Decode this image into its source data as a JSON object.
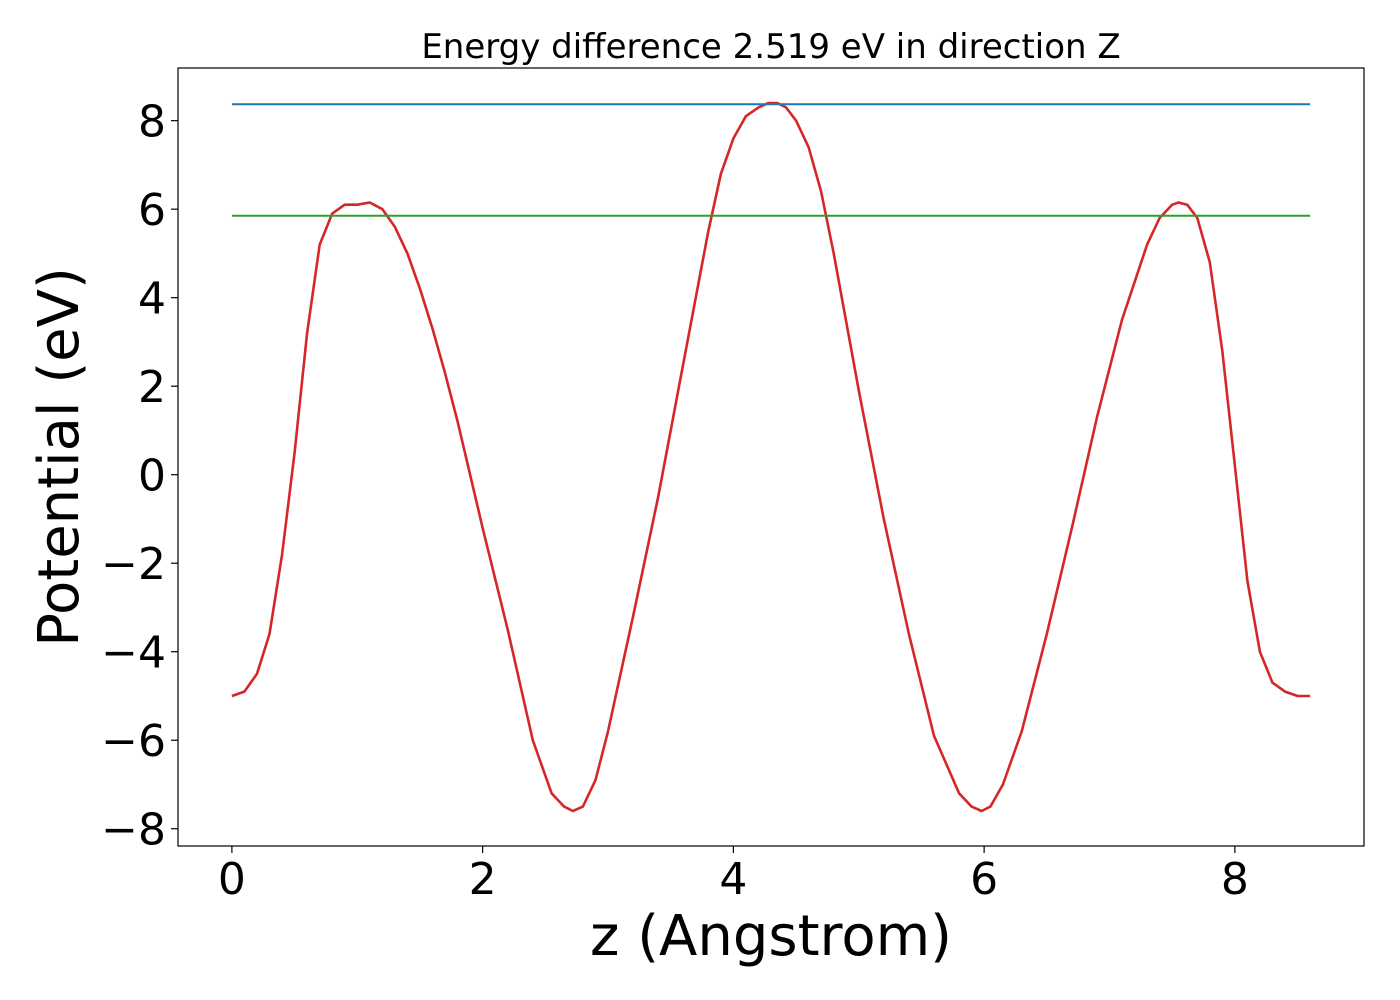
{
  "chart_data": {
    "type": "line",
    "title": "Energy difference 2.519 eV in direction Z",
    "xlabel": "z (Angstrom)",
    "ylabel": "Potential (eV)",
    "xlim": [
      -0.43,
      9.03
    ],
    "ylim": [
      -8.39,
      9.19
    ],
    "xticks": [
      0,
      2,
      4,
      6,
      8
    ],
    "yticks": [
      -8,
      -6,
      -4,
      -2,
      0,
      2,
      4,
      6,
      8
    ],
    "xtick_labels": [
      "0",
      "2",
      "4",
      "6",
      "8"
    ],
    "ytick_labels": [
      "−8",
      "−6",
      "−4",
      "−2",
      "0",
      "2",
      "4",
      "6",
      "8"
    ],
    "grid": false,
    "legend": "none",
    "series": [
      {
        "color": "#d62728",
        "x": [
          0.0,
          0.1,
          0.2,
          0.3,
          0.4,
          0.5,
          0.6,
          0.7,
          0.8,
          0.9,
          1.0,
          1.1,
          1.2,
          1.3,
          1.4,
          1.5,
          1.6,
          1.7,
          1.8,
          1.9,
          2.0,
          2.2,
          2.4,
          2.55,
          2.65,
          2.72,
          2.8,
          2.9,
          3.0,
          3.2,
          3.4,
          3.6,
          3.8,
          3.9,
          4.0,
          4.1,
          4.2,
          4.28,
          4.35,
          4.42,
          4.5,
          4.6,
          4.7,
          4.8,
          5.0,
          5.2,
          5.4,
          5.6,
          5.8,
          5.9,
          5.98,
          6.05,
          6.15,
          6.3,
          6.5,
          6.7,
          6.9,
          7.1,
          7.3,
          7.4,
          7.5,
          7.55,
          7.62,
          7.7,
          7.8,
          7.9,
          8.0,
          8.1,
          8.2,
          8.3,
          8.4,
          8.5,
          8.6
        ],
        "y": [
          -5.0,
          -4.9,
          -4.5,
          -3.6,
          -1.8,
          0.5,
          3.2,
          5.2,
          5.9,
          6.1,
          6.1,
          6.15,
          6.0,
          5.6,
          5.0,
          4.2,
          3.3,
          2.3,
          1.2,
          0.0,
          -1.2,
          -3.5,
          -6.0,
          -7.2,
          -7.5,
          -7.6,
          -7.5,
          -6.9,
          -5.8,
          -3.2,
          -0.5,
          2.5,
          5.5,
          6.8,
          7.6,
          8.1,
          8.3,
          8.4,
          8.4,
          8.3,
          8.0,
          7.4,
          6.4,
          5.0,
          1.9,
          -1.0,
          -3.6,
          -5.9,
          -7.2,
          -7.5,
          -7.6,
          -7.5,
          -7.0,
          -5.8,
          -3.6,
          -1.2,
          1.3,
          3.5,
          5.2,
          5.8,
          6.1,
          6.15,
          6.1,
          5.8,
          4.8,
          2.8,
          0.2,
          -2.4,
          -4.0,
          -4.7,
          -4.9,
          -5.0,
          -5.0
        ]
      },
      {
        "color": "#1f77b4",
        "x": [
          0.0,
          8.6
        ],
        "y": [
          8.37,
          8.37
        ]
      },
      {
        "color": "#2ca02c",
        "x": [
          0.0,
          8.6
        ],
        "y": [
          5.85,
          5.85
        ]
      }
    ]
  }
}
